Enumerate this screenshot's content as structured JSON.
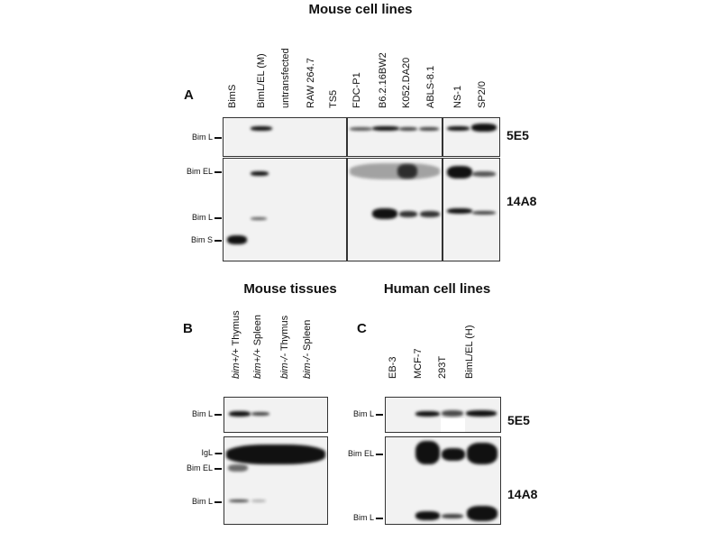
{
  "panel_a": {
    "letter": "A",
    "title": "Mouse cell lines",
    "lanes": [
      "BimS",
      "BimL/EL (M)",
      "untransfected",
      "RAW 264.7",
      "TS5",
      "FDC-P1",
      "B6.2.16BW2",
      "K052.DA20",
      "ABLS-8.1",
      "NS-1",
      "SP2/0"
    ],
    "top_markers": [
      "Bim L"
    ],
    "bottom_markers": [
      "Bim EL",
      "Bim L",
      "Bim S"
    ],
    "antibodies": [
      "5E5",
      "14A8"
    ]
  },
  "panel_b": {
    "letter": "B",
    "title": "Mouse tissues",
    "lanes": [
      [
        "bim+/+",
        " Thymus"
      ],
      [
        "bim+/+",
        " Spleen"
      ],
      [
        "bim-/-",
        " Thymus"
      ],
      [
        "bim-/-",
        " Spleen"
      ]
    ],
    "top_markers": [
      "Bim L"
    ],
    "bottom_markers": [
      "IgL",
      "Bim EL",
      "Bim L"
    ]
  },
  "panel_c": {
    "letter": "C",
    "title": "Human cell lines",
    "lanes": [
      "EB-3",
      "MCF-7",
      "293T",
      "BimL/EL (H)"
    ],
    "top_markers": [
      "Bim L"
    ],
    "bottom_markers": [
      "Bim EL",
      "Bim L"
    ],
    "antibodies": [
      "5E5",
      "14A8"
    ]
  }
}
